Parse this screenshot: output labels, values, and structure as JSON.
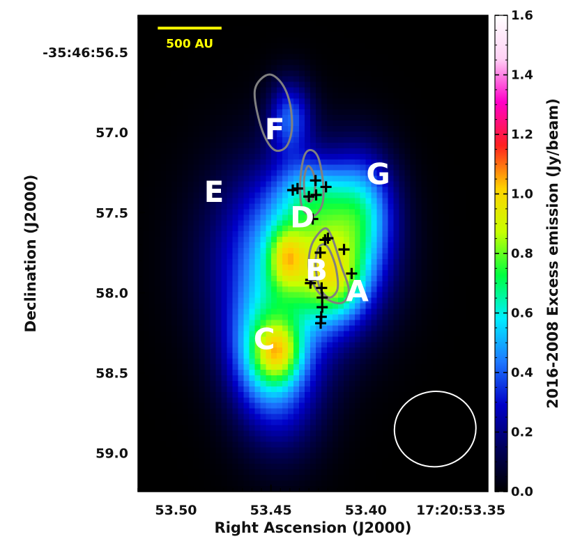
{
  "chart_data": {
    "type": "heatmap",
    "xlabel": "Right Ascension (J2000)",
    "ylabel": "Declination (J2000)",
    "x_ticks": [
      {
        "value": 53.5,
        "label": "53.50"
      },
      {
        "value": 53.45,
        "label": "53.45"
      },
      {
        "value": 53.4,
        "label": "53.40"
      },
      {
        "value": 53.35,
        "label": "17:20:53.35"
      }
    ],
    "y_ticks": [
      {
        "value": 56.5,
        "label": "-35:46:56.5"
      },
      {
        "value": 57.0,
        "label": "57.0"
      },
      {
        "value": 57.5,
        "label": "57.5"
      },
      {
        "value": 58.0,
        "label": "58.0"
      },
      {
        "value": 58.5,
        "label": "58.5"
      },
      {
        "value": 59.0,
        "label": "59.0"
      }
    ],
    "xlim": [
      53.52,
      53.3357
    ],
    "ylim": [
      59.24,
      56.27
    ],
    "colorbar": {
      "label": "2016-2008 Excess emission (Jy/beam)",
      "range": [
        0.0,
        1.6
      ],
      "ticks": [
        {
          "value": 0.0,
          "label": "0.0"
        },
        {
          "value": 0.2,
          "label": "0.2"
        },
        {
          "value": 0.4,
          "label": "0.4"
        },
        {
          "value": 0.6,
          "label": "0.6"
        },
        {
          "value": 0.8,
          "label": "0.8"
        },
        {
          "value": 1.0,
          "label": "1.0"
        },
        {
          "value": 1.2,
          "label": "1.2"
        },
        {
          "value": 1.4,
          "label": "1.4"
        },
        {
          "value": 1.6,
          "label": "1.6"
        }
      ],
      "colormap": [
        "#000000",
        "#00005a",
        "#0000c8",
        "#1e78ff",
        "#00eeff",
        "#00ff40",
        "#c8ff00",
        "#ffd200",
        "#ff2020",
        "#ff00c8",
        "#ffd2f5",
        "#ffffff"
      ]
    },
    "emission_components": [
      {
        "ra": 53.4465,
        "dec": 57.8,
        "sra": 0.025,
        "sdec": 0.42,
        "amp": 0.45
      },
      {
        "ra": 53.418,
        "dec": 57.75,
        "sra": 0.02,
        "sdec": 0.33,
        "amp": 0.55
      },
      {
        "ra": 53.415,
        "dec": 57.95,
        "sra": 0.011,
        "sdec": 0.15,
        "amp": 0.25
      },
      {
        "ra": 53.442,
        "dec": 57.78,
        "sra": 0.0065,
        "sdec": 0.13,
        "amp": 0.3
      },
      {
        "ra": 53.446,
        "dec": 58.37,
        "sra": 0.0085,
        "sdec": 0.13,
        "amp": 0.38
      },
      {
        "ra": 53.44,
        "dec": 56.9,
        "sra": 0.008,
        "sdec": 0.16,
        "amp": 0.36
      },
      {
        "ra": 53.401,
        "dec": 57.45,
        "sra": 0.012,
        "sdec": 0.25,
        "amp": 0.33
      },
      {
        "ra": 53.456,
        "dec": 58.35,
        "sra": 0.013,
        "sdec": 0.25,
        "amp": 0.3
      },
      {
        "ra": 53.445,
        "dec": 58.6,
        "sra": 0.016,
        "sdec": 0.3,
        "amp": 0.3
      },
      {
        "ra": 53.43,
        "dec": 57.35,
        "sra": 0.012,
        "sdec": 0.13,
        "amp": 0.18
      }
    ],
    "contours": [
      {
        "name": "F",
        "points": [
          [
            53.4555,
            56.67
          ],
          [
            53.45,
            56.64
          ],
          [
            53.444,
            56.7
          ],
          [
            53.44,
            56.82
          ],
          [
            53.439,
            56.98
          ],
          [
            53.442,
            57.09
          ],
          [
            53.448,
            57.11
          ],
          [
            53.4535,
            57.02
          ],
          [
            53.4575,
            56.86
          ],
          [
            53.4585,
            56.74
          ]
        ]
      },
      {
        "name": "D-outer",
        "points": [
          [
            53.429,
            57.11
          ],
          [
            53.425,
            57.16
          ],
          [
            53.4225,
            57.32
          ],
          [
            53.423,
            57.45
          ],
          [
            53.4275,
            57.52
          ],
          [
            53.4335,
            57.47
          ],
          [
            53.4345,
            57.3
          ],
          [
            53.4325,
            57.15
          ]
        ]
      },
      {
        "name": "D-inner",
        "points": [
          [
            53.4305,
            57.21
          ],
          [
            53.4275,
            57.26
          ],
          [
            53.4268,
            57.36
          ],
          [
            53.429,
            57.43
          ],
          [
            53.432,
            57.4
          ],
          [
            53.4325,
            57.29
          ]
        ]
      },
      {
        "name": "B-outer",
        "points": [
          [
            53.422,
            57.6
          ],
          [
            53.418,
            57.65
          ],
          [
            53.413,
            57.83
          ],
          [
            53.409,
            57.98
          ],
          [
            53.412,
            58.06
          ],
          [
            53.419,
            58.05
          ],
          [
            53.426,
            57.98
          ],
          [
            53.43,
            57.85
          ],
          [
            53.4285,
            57.7
          ]
        ]
      },
      {
        "name": "B-inner",
        "points": [
          [
            53.4215,
            57.7
          ],
          [
            53.4185,
            57.75
          ],
          [
            53.4155,
            57.86
          ],
          [
            53.415,
            57.98
          ],
          [
            53.4195,
            58.03
          ],
          [
            53.4245,
            57.96
          ],
          [
            53.4265,
            57.82
          ],
          [
            53.425,
            57.72
          ]
        ]
      }
    ],
    "crosses": [
      [
        53.4385,
        57.36
      ],
      [
        53.436,
        57.35
      ],
      [
        53.43,
        57.4
      ],
      [
        53.4265,
        57.3
      ],
      [
        53.4262,
        57.39
      ],
      [
        53.421,
        57.34
      ],
      [
        53.428,
        57.54
      ],
      [
        53.42,
        57.66
      ],
      [
        53.4215,
        57.67
      ],
      [
        53.424,
        57.75
      ],
      [
        53.4115,
        57.73
      ],
      [
        53.4075,
        57.88
      ],
      [
        53.429,
        57.92
      ],
      [
        53.4292,
        57.94
      ],
      [
        53.4233,
        57.97
      ],
      [
        53.423,
        58.03
      ],
      [
        53.423,
        58.09
      ],
      [
        53.4235,
        58.15
      ],
      [
        53.4238,
        58.19
      ]
    ],
    "annotations": [
      {
        "text": "A",
        "ra": 53.4045,
        "dec": 57.99
      },
      {
        "text": "B",
        "ra": 53.426,
        "dec": 57.86
      },
      {
        "text": "C",
        "ra": 53.4535,
        "dec": 58.29
      },
      {
        "text": "D",
        "ra": 53.4335,
        "dec": 57.53
      },
      {
        "text": "E",
        "ra": 53.48,
        "dec": 57.37
      },
      {
        "text": "F",
        "ra": 53.448,
        "dec": 56.98
      },
      {
        "text": "G",
        "ra": 53.3935,
        "dec": 57.26
      }
    ],
    "scale_bar": {
      "label": "500 AU",
      "color": "#ffff00",
      "ra_start": 53.5096,
      "ra_end": 53.476,
      "dec": 56.35
    },
    "beam": {
      "ra": 53.3635,
      "dec": 58.85,
      "major": 0.47,
      "minor": 0.0215,
      "tilt_deg": 8,
      "color": "#ffffff"
    },
    "colors": {
      "contour": "#808080",
      "cross": "#000000",
      "label": "#ffffff"
    }
  }
}
